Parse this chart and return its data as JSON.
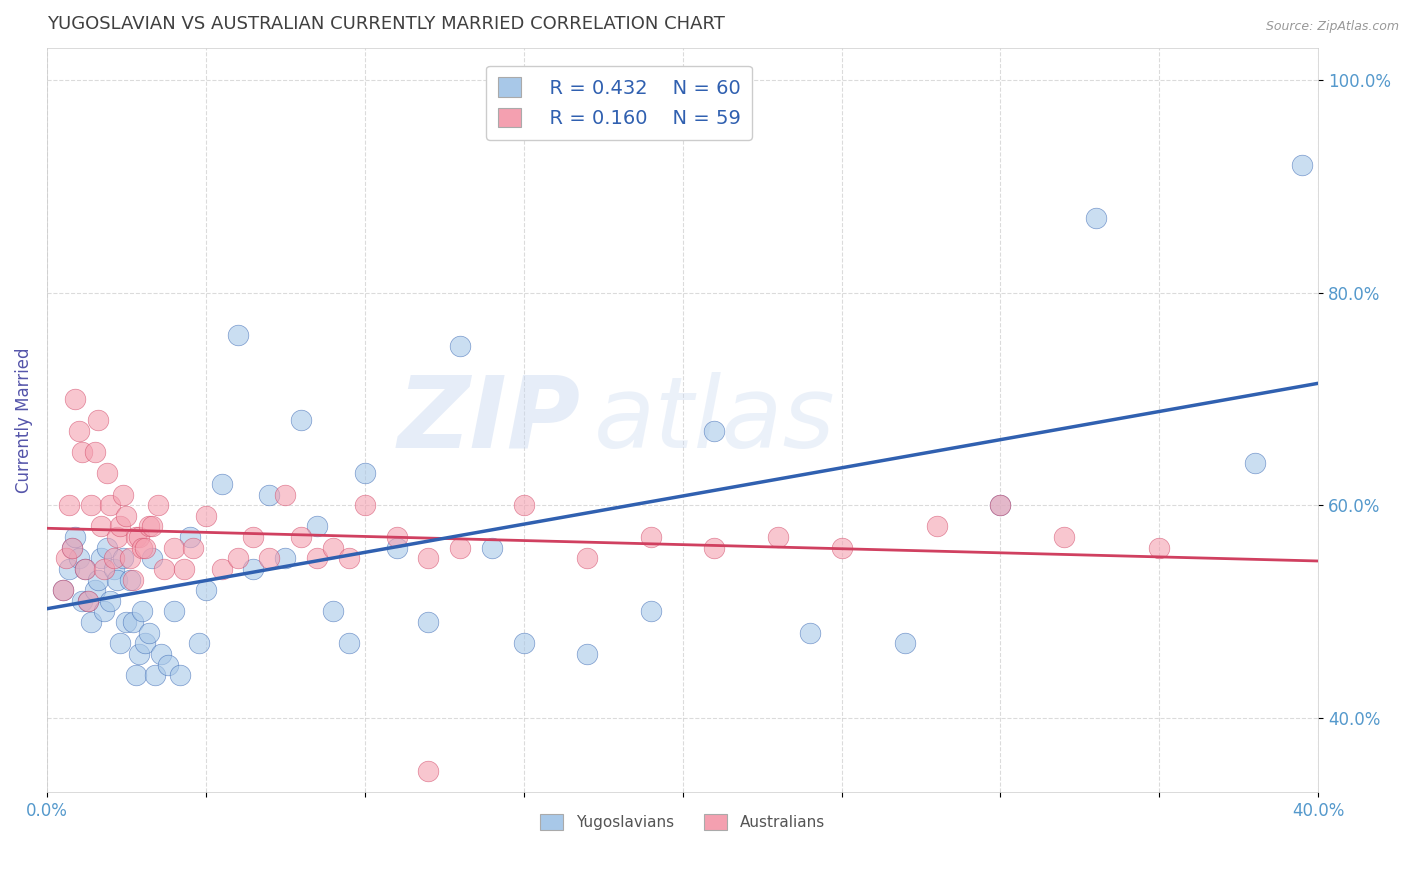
{
  "title": "YUGOSLAVIAN VS AUSTRALIAN CURRENTLY MARRIED CORRELATION CHART",
  "source": "Source: ZipAtlas.com",
  "ylabel": "Currently Married",
  "xlim": [
    0.0,
    0.4
  ],
  "ylim": [
    0.33,
    1.03
  ],
  "xticks": [
    0.0,
    0.05,
    0.1,
    0.15,
    0.2,
    0.25,
    0.3,
    0.35,
    0.4
  ],
  "yticks": [
    0.4,
    0.6,
    0.8,
    1.0
  ],
  "ytick_labels": [
    "40.0%",
    "60.0%",
    "80.0%",
    "100.0%"
  ],
  "xtick_labels_shown": [
    "0.0%",
    "40.0%"
  ],
  "legend_blue_r": "R = 0.432",
  "legend_blue_n": "N = 60",
  "legend_pink_r": "R = 0.160",
  "legend_pink_n": "N = 59",
  "blue_color": "#a8c8e8",
  "pink_color": "#f4a0b0",
  "blue_line_color": "#3060b0",
  "pink_line_color": "#d04060",
  "watermark_text": "ZIP",
  "watermark_text2": "atlas",
  "blue_scatter_x": [
    0.005,
    0.007,
    0.008,
    0.009,
    0.01,
    0.011,
    0.012,
    0.013,
    0.014,
    0.015,
    0.016,
    0.017,
    0.018,
    0.019,
    0.02,
    0.021,
    0.022,
    0.023,
    0.024,
    0.025,
    0.026,
    0.027,
    0.028,
    0.029,
    0.03,
    0.031,
    0.032,
    0.033,
    0.034,
    0.036,
    0.038,
    0.04,
    0.042,
    0.045,
    0.048,
    0.05,
    0.055,
    0.06,
    0.065,
    0.07,
    0.075,
    0.08,
    0.085,
    0.09,
    0.095,
    0.1,
    0.11,
    0.12,
    0.13,
    0.14,
    0.15,
    0.17,
    0.19,
    0.21,
    0.24,
    0.27,
    0.3,
    0.33,
    0.38,
    0.395
  ],
  "blue_scatter_y": [
    0.52,
    0.54,
    0.56,
    0.57,
    0.55,
    0.51,
    0.54,
    0.51,
    0.49,
    0.52,
    0.53,
    0.55,
    0.5,
    0.56,
    0.51,
    0.54,
    0.53,
    0.47,
    0.55,
    0.49,
    0.53,
    0.49,
    0.44,
    0.46,
    0.5,
    0.47,
    0.48,
    0.55,
    0.44,
    0.46,
    0.45,
    0.5,
    0.44,
    0.57,
    0.47,
    0.52,
    0.62,
    0.76,
    0.54,
    0.61,
    0.55,
    0.68,
    0.58,
    0.5,
    0.47,
    0.63,
    0.56,
    0.49,
    0.75,
    0.56,
    0.47,
    0.46,
    0.5,
    0.67,
    0.48,
    0.47,
    0.6,
    0.87,
    0.64,
    0.92
  ],
  "pink_scatter_x": [
    0.005,
    0.006,
    0.007,
    0.008,
    0.009,
    0.01,
    0.011,
    0.012,
    0.013,
    0.014,
    0.015,
    0.016,
    0.017,
    0.018,
    0.019,
    0.02,
    0.021,
    0.022,
    0.023,
    0.024,
    0.025,
    0.026,
    0.027,
    0.028,
    0.029,
    0.03,
    0.031,
    0.032,
    0.033,
    0.035,
    0.037,
    0.04,
    0.043,
    0.046,
    0.05,
    0.055,
    0.06,
    0.065,
    0.07,
    0.075,
    0.08,
    0.085,
    0.09,
    0.095,
    0.1,
    0.11,
    0.12,
    0.13,
    0.15,
    0.17,
    0.19,
    0.21,
    0.23,
    0.25,
    0.28,
    0.3,
    0.32,
    0.35,
    0.12
  ],
  "pink_scatter_y": [
    0.52,
    0.55,
    0.6,
    0.56,
    0.7,
    0.67,
    0.65,
    0.54,
    0.51,
    0.6,
    0.65,
    0.68,
    0.58,
    0.54,
    0.63,
    0.6,
    0.55,
    0.57,
    0.58,
    0.61,
    0.59,
    0.55,
    0.53,
    0.57,
    0.57,
    0.56,
    0.56,
    0.58,
    0.58,
    0.6,
    0.54,
    0.56,
    0.54,
    0.56,
    0.59,
    0.54,
    0.55,
    0.57,
    0.55,
    0.61,
    0.57,
    0.55,
    0.56,
    0.55,
    0.6,
    0.57,
    0.55,
    0.56,
    0.6,
    0.55,
    0.57,
    0.56,
    0.57,
    0.56,
    0.58,
    0.6,
    0.57,
    0.56,
    0.35
  ],
  "background_color": "#ffffff",
  "grid_color": "#cccccc",
  "title_color": "#404040",
  "axis_label_color": "#5555aa",
  "tick_color": "#5599cc"
}
